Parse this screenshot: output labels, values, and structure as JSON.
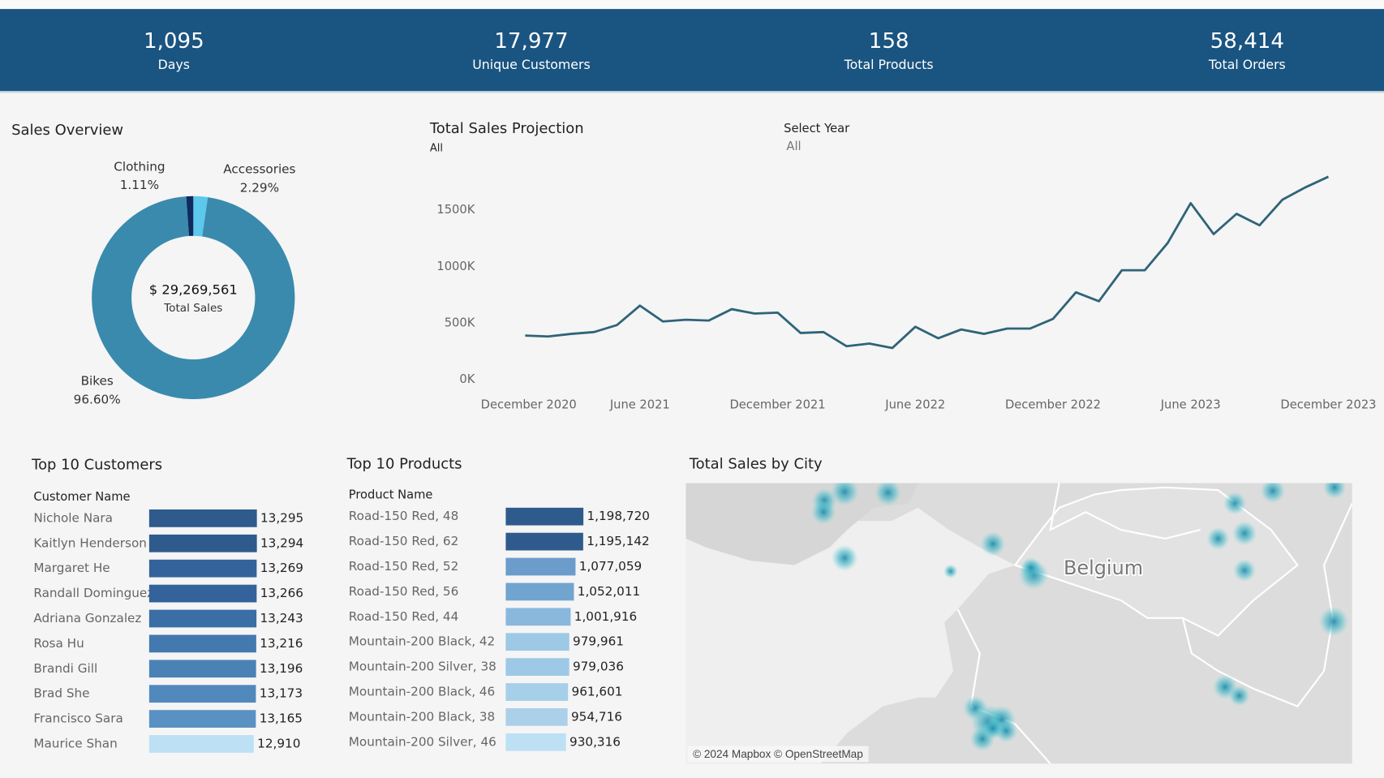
{
  "header": {
    "kpis": [
      {
        "value": "1,095",
        "label": "Days"
      },
      {
        "value": "17,977",
        "label": "Unique Customers"
      },
      {
        "value": "158",
        "label": "Total Products"
      },
      {
        "value": "58,414",
        "label": "Total Orders"
      }
    ]
  },
  "chart_data": [
    {
      "type": "donut",
      "title": "Sales Overview",
      "center_value": "$ 29,269,561",
      "center_label": "Total Sales",
      "categories": [
        "Accessories",
        "Bikes",
        "Clothing"
      ],
      "values": [
        2.29,
        96.6,
        1.11
      ],
      "value_labels": [
        "2.29%",
        "96.60%",
        "1.11%"
      ],
      "colors": [
        "#5bc8ec",
        "#3a8aae",
        "#0f2a5e"
      ]
    },
    {
      "type": "line",
      "title": "Total Sales Projection",
      "subtitle": "All",
      "filter": {
        "label": "Select Year",
        "value": "All"
      },
      "x": [
        "2021-01",
        "2021-02",
        "2021-03",
        "2021-04",
        "2021-05",
        "2021-06",
        "2021-07",
        "2021-08",
        "2021-09",
        "2021-10",
        "2021-11",
        "2021-12",
        "2022-01",
        "2022-02",
        "2022-03",
        "2022-04",
        "2022-05",
        "2022-06",
        "2022-07",
        "2022-08",
        "2022-09",
        "2022-10",
        "2022-11",
        "2022-12",
        "2023-01",
        "2023-02",
        "2023-03",
        "2023-04",
        "2023-05",
        "2023-06",
        "2023-07",
        "2023-08",
        "2023-09",
        "2023-10",
        "2023-11",
        "2023-12"
      ],
      "values": [
        469,
        461,
        484,
        500,
        562,
        734,
        594,
        609,
        602,
        703,
        664,
        672,
        492,
        500,
        375,
        398,
        359,
        547,
        445,
        523,
        484,
        531,
        531,
        617,
        852,
        773,
        1047,
        1047,
        1289,
        1641,
        1367,
        1547,
        1445,
        1672,
        1781,
        1875
      ],
      "color": "#2f6478",
      "xlim": [
        "2020-11",
        "2024-01"
      ],
      "ylim": [
        0,
        2000
      ],
      "xticks": [
        {
          "value": "2020-12",
          "label": "December 2020"
        },
        {
          "value": "2021-06",
          "label": "June 2021"
        },
        {
          "value": "2021-12",
          "label": "December 2021"
        },
        {
          "value": "2022-06",
          "label": "June 2022"
        },
        {
          "value": "2022-12",
          "label": "December 2022"
        },
        {
          "value": "2023-06",
          "label": "June 2023"
        },
        {
          "value": "2023-12",
          "label": "December 2023"
        }
      ],
      "yticks": [
        {
          "value": 0,
          "label": "0K"
        },
        {
          "value": 500,
          "label": "500K"
        },
        {
          "value": 1000,
          "label": "1000K"
        },
        {
          "value": 1500,
          "label": "1500K"
        }
      ]
    },
    {
      "type": "hbar",
      "title": "Top 10 Customers",
      "category_label": "Customer Name",
      "categories": [
        "Nichole Nara",
        "Kaitlyn Henderson",
        "Margaret He",
        "Randall Dominguez",
        "Adriana Gonzalez",
        "Rosa Hu",
        "Brandi Gill",
        "Brad She",
        "Francisco Sara",
        "Maurice Shan"
      ],
      "values": [
        13295,
        13294,
        13269,
        13266,
        13243,
        13216,
        13196,
        13173,
        13165,
        12910
      ],
      "value_labels": [
        "13,295",
        "13,294",
        "13,269",
        "13,266",
        "13,243",
        "13,216",
        "13,196",
        "13,173",
        "13,165",
        "12,910"
      ],
      "colors": [
        "#2e5b8c",
        "#2e5b8c",
        "#33639a",
        "#33639a",
        "#3a6ea5",
        "#4379ae",
        "#4a82b6",
        "#5289bd",
        "#5a91c3",
        "#bde0f4"
      ],
      "xlim": [
        0,
        14000
      ]
    },
    {
      "type": "hbar",
      "title": "Top 10 Products",
      "category_label": "Product Name",
      "categories": [
        "Road-150 Red, 48",
        "Road-150 Red, 62",
        "Road-150 Red, 52",
        "Road-150 Red, 56",
        "Road-150 Red, 44",
        "Mountain-200 Black, 42",
        "Mountain-200 Silver, 38",
        "Mountain-200 Black, 46",
        "Mountain-200 Black, 38",
        "Mountain-200 Silver, 46"
      ],
      "values": [
        1198720,
        1195142,
        1077059,
        1052011,
        1001916,
        979961,
        979036,
        961601,
        954716,
        930316
      ],
      "value_labels": [
        "1,198,720",
        "1,195,142",
        "1,077,059",
        "1,052,011",
        "1,001,916",
        "979,961",
        "979,036",
        "961,601",
        "954,716",
        "930,316"
      ],
      "colors": [
        "#2e5b8c",
        "#2e5b8c",
        "#6b9ccb",
        "#72a4d0",
        "#8ab8dd",
        "#9dc8e6",
        "#9dc8e6",
        "#a6cfea",
        "#accfea",
        "#bde0f4"
      ],
      "xlim": [
        0,
        1300000
      ]
    },
    {
      "type": "map",
      "title": "Total Sales by City",
      "place_label": "Belgium",
      "attribution": "© 2024 Mapbox © OpenStreetMap"
    }
  ]
}
